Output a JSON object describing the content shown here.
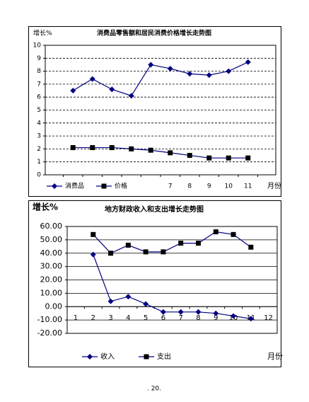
{
  "chart_data": [
    {
      "type": "line",
      "title": "消费品零售额和居民消费价格增长走势图",
      "y_label": "增长%",
      "x_label": "月份",
      "categories": [
        null,
        null,
        null,
        null,
        null,
        null,
        "7",
        "8",
        "9",
        "10",
        "11",
        null
      ],
      "series": [
        {
          "name": "消费品",
          "color": "#000080",
          "marker": "diamond",
          "values": [
            null,
            6.5,
            7.4,
            6.6,
            6.1,
            8.5,
            8.2,
            7.8,
            7.7,
            8.0,
            8.7,
            null
          ]
        },
        {
          "name": "价格",
          "color": "#000080",
          "marker": "square",
          "values": [
            null,
            2.1,
            2.1,
            2.1,
            2.0,
            1.9,
            1.7,
            1.5,
            1.3,
            1.3,
            1.3,
            null
          ]
        }
      ],
      "ylim": [
        0,
        10
      ],
      "yticks": [
        0,
        1,
        2,
        3,
        4,
        5,
        6,
        7,
        8,
        9,
        10
      ],
      "grid": true
    },
    {
      "type": "line",
      "title": "地方财政收入和支出增长走势图",
      "y_label": "增长%",
      "x_label": "月份",
      "categories": [
        "1",
        "2",
        "3",
        "4",
        "5",
        "6",
        "7",
        "8",
        "9",
        "10",
        "11",
        "12"
      ],
      "series": [
        {
          "name": "收入",
          "color": "#000080",
          "marker": "diamond",
          "values": [
            null,
            39,
            4,
            7.5,
            2,
            -4,
            -4,
            -4,
            -5,
            -7,
            -9,
            null
          ]
        },
        {
          "name": "支出",
          "color": "#000080",
          "marker": "square",
          "values": [
            null,
            54,
            40,
            46,
            41,
            41,
            47.5,
            47.5,
            56,
            54,
            44.5,
            null
          ]
        }
      ],
      "ylim": [
        -20,
        60
      ],
      "yticks": [
        {
          "value": -20,
          "label": "-20.00"
        },
        {
          "value": -10,
          "label": "-10.00"
        },
        {
          "value": 0,
          "label": "0.00"
        },
        {
          "value": 10,
          "label": "10.00"
        },
        {
          "value": 20,
          "label": "20.00"
        },
        {
          "value": 30,
          "label": "30.00"
        },
        {
          "value": 40,
          "label": "40.00"
        },
        {
          "value": 50,
          "label": "50.00"
        },
        {
          "value": 60,
          "label": "60.00"
        }
      ],
      "grid": true
    }
  ],
  "page_number": ". 20."
}
